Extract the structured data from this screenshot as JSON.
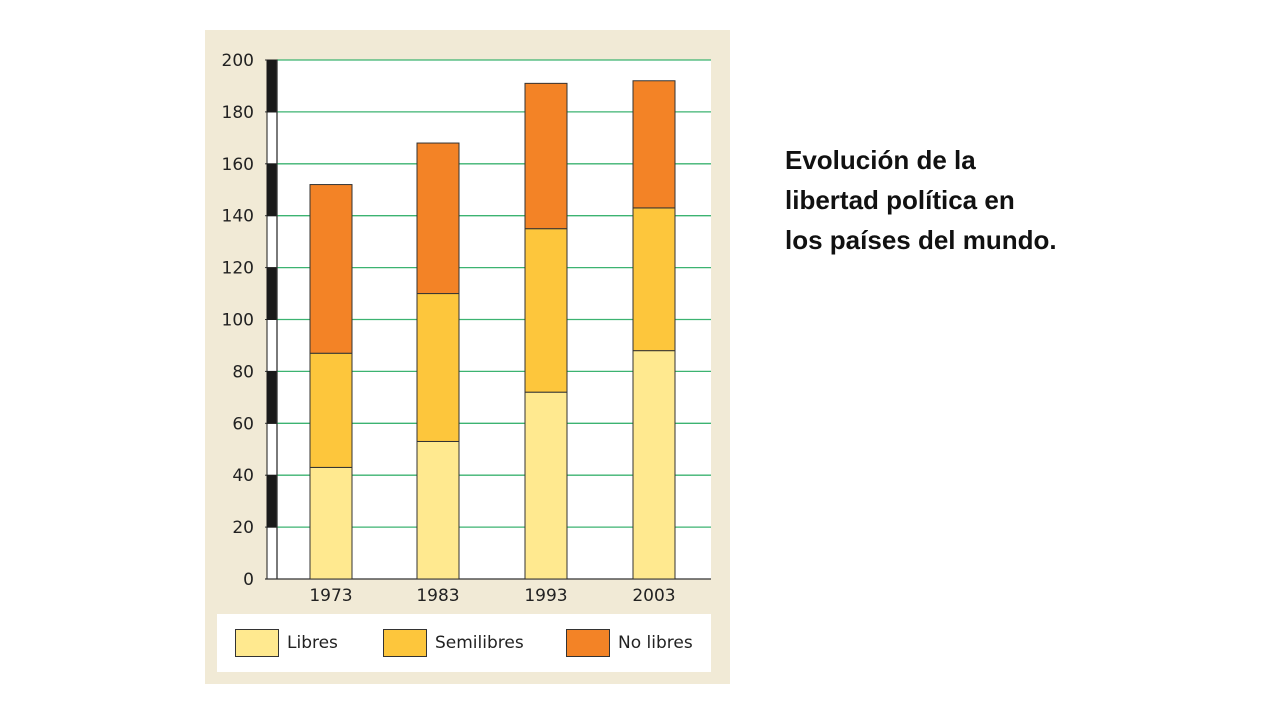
{
  "caption": {
    "lines": [
      "Evolución de la",
      "libertad política en",
      "los países del mundo."
    ]
  },
  "colors": {
    "panel": "#f1ead6",
    "grid": "#3cb371",
    "libres": "#ffe98f",
    "semilibres": "#fdc63c",
    "no_libres": "#f38326"
  },
  "chart_data": {
    "type": "bar",
    "stacked": true,
    "categories": [
      "1973",
      "1983",
      "1993",
      "2003"
    ],
    "series": [
      {
        "name": "Libres",
        "values": [
          43,
          53,
          72,
          88
        ],
        "color": "#ffe98f"
      },
      {
        "name": "Semilibres",
        "values": [
          44,
          57,
          63,
          55
        ],
        "color": "#fdc63c"
      },
      {
        "name": "No libres",
        "values": [
          65,
          58,
          56,
          49
        ],
        "color": "#f38326"
      }
    ],
    "ylim": [
      0,
      200
    ],
    "yticks": [
      "0",
      "20",
      "40",
      "60",
      "80",
      "100",
      "120",
      "140",
      "160",
      "180",
      "200"
    ],
    "grid": true,
    "legend_position": "bottom"
  }
}
